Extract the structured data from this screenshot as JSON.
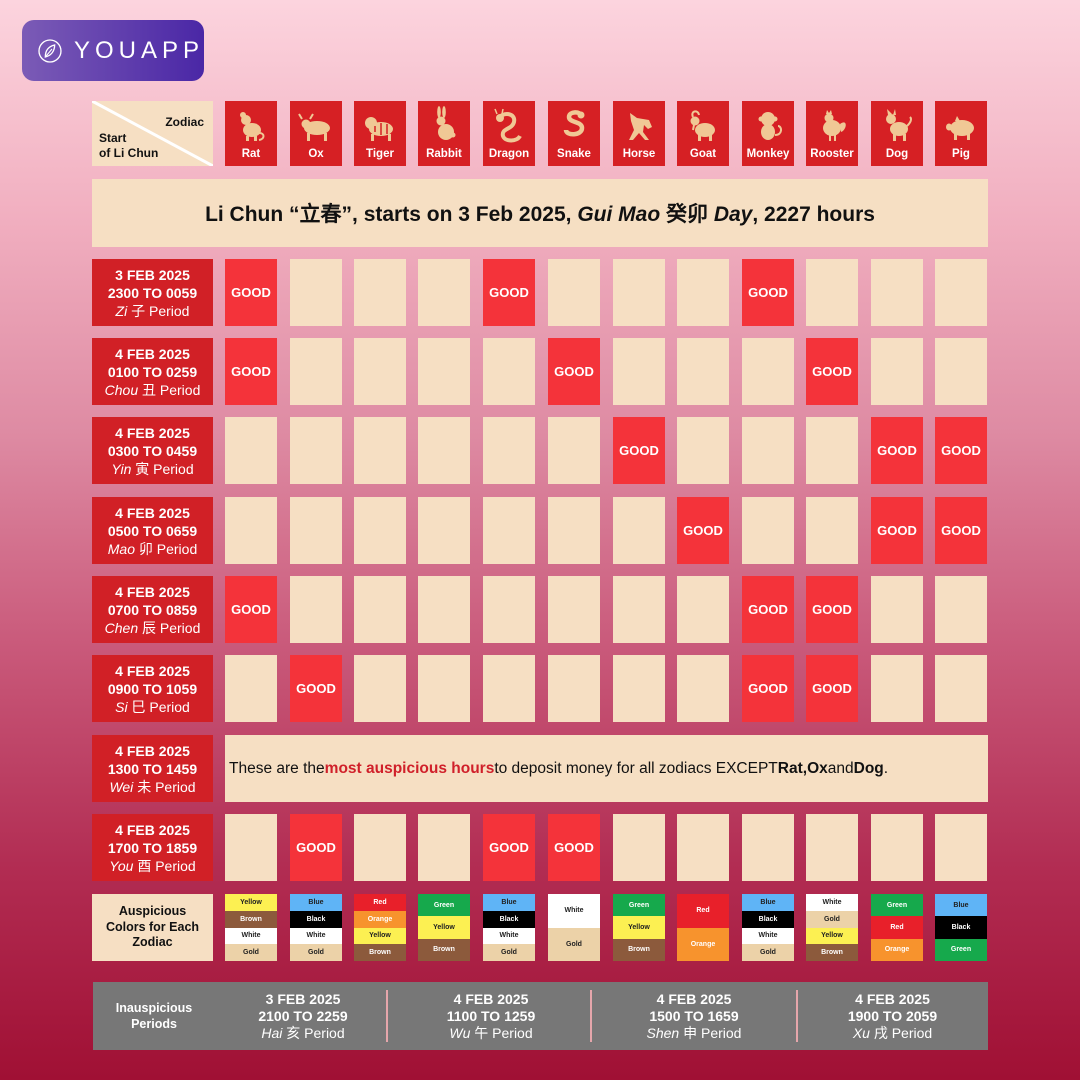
{
  "brand": {
    "name": "YOUAPP"
  },
  "corner": {
    "zodiac": "Zodiac",
    "start_line1": "Start",
    "start_line2": "of Li Chun"
  },
  "zodiacs": [
    "Rat",
    "Ox",
    "Tiger",
    "Rabbit",
    "Dragon",
    "Snake",
    "Horse",
    "Goat",
    "Monkey",
    "Rooster",
    "Dog",
    "Pig"
  ],
  "banner": {
    "part1": "Li Chun “立春”, starts on 3 Feb 2025, ",
    "italic1": "Gui Mao",
    "part2": " 癸卯 ",
    "italic2": "Day",
    "part3": ", 2227 hours"
  },
  "good_label": "GOOD",
  "periods": [
    {
      "date": "3 FEB 2025",
      "time": "2300 TO 0059",
      "name": "Zi",
      "chinese": "子",
      "suffix": "Period",
      "good": [
        0,
        4,
        8
      ]
    },
    {
      "date": "4 FEB 2025",
      "time": "0100 TO 0259",
      "name": "Chou",
      "chinese": "丑",
      "suffix": "Period",
      "good": [
        0,
        5,
        9
      ]
    },
    {
      "date": "4 FEB 2025",
      "time": "0300 TO 0459",
      "name": "Yin",
      "chinese": "寅",
      "suffix": "Period",
      "good": [
        6,
        10,
        11
      ]
    },
    {
      "date": "4 FEB 2025",
      "time": "0500 TO 0659",
      "name": "Mao",
      "chinese": "卯",
      "suffix": "Period",
      "good": [
        7,
        10,
        11
      ]
    },
    {
      "date": "4 FEB 2025",
      "time": "0700 TO 0859",
      "name": "Chen",
      "chinese": "辰",
      "suffix": "Period",
      "good": [
        0,
        8,
        9
      ]
    },
    {
      "date": "4 FEB 2025",
      "time": "0900 TO 1059",
      "name": "Si",
      "chinese": "巳",
      "suffix": "Period",
      "good": [
        1,
        8,
        9
      ]
    },
    {
      "date": "4 FEB 2025",
      "time": "1300 TO 1459",
      "name": "Wei",
      "chinese": "未",
      "suffix": "Period",
      "good": []
    },
    {
      "date": "4 FEB 2025",
      "time": "1700 TO 1859",
      "name": "You",
      "chinese": "酉",
      "suffix": "Period",
      "good": [
        1,
        4,
        5
      ]
    }
  ],
  "wei_message": {
    "pre": "These are the ",
    "highlight": "most auspicious hours",
    "mid": " to deposit money for all zodiacs EXCEPT ",
    "rat": "Rat",
    "comma": ", ",
    "ox": "Ox",
    "and": " and ",
    "dog": "Dog",
    "end": "."
  },
  "colors_label": "Auspicious Colors for Each Zodiac",
  "auspicious_colors": [
    [
      "Yellow",
      "Brown",
      "White",
      "Gold"
    ],
    [
      "Blue",
      "Black",
      "White",
      "Gold"
    ],
    [
      "Red",
      "Orange",
      "Yellow",
      "Brown"
    ],
    [
      "Green",
      "Yellow",
      "Brown"
    ],
    [
      "Blue",
      "Black",
      "White",
      "Gold"
    ],
    [
      "White",
      "Gold"
    ],
    [
      "Green",
      "Yellow",
      "Brown"
    ],
    [
      "Red",
      "Orange"
    ],
    [
      "Blue",
      "Black",
      "White",
      "Gold"
    ],
    [
      "White",
      "Gold",
      "Yellow",
      "Brown"
    ],
    [
      "Green",
      "Red",
      "Orange"
    ],
    [
      "Blue",
      "Black",
      "Green"
    ]
  ],
  "swatch_colors": {
    "Yellow": "#fcf052",
    "Brown": "#8c5a3c",
    "White": "#ffffff",
    "Gold": "#ecd2a8",
    "Blue": "#5fb4f6",
    "Black": "#000000",
    "Red": "#e8202a",
    "Orange": "#f7932d",
    "Green": "#16a94c"
  },
  "inauspicious": {
    "label": "Inauspicious Periods",
    "periods": [
      {
        "date": "3 FEB 2025",
        "time": "2100 TO 2259",
        "name": "Hai",
        "chinese": "亥",
        "suffix": "Period"
      },
      {
        "date": "4 FEB 2025",
        "time": "1100 TO 1259",
        "name": "Wu",
        "chinese": "午",
        "suffix": "Period"
      },
      {
        "date": "4 FEB 2025",
        "time": "1500 TO 1659",
        "name": "Shen",
        "chinese": "申",
        "suffix": "Period"
      },
      {
        "date": "4 FEB 2025",
        "time": "1900 TO 2059",
        "name": "Xu",
        "chinese": "戌",
        "suffix": "Period"
      }
    ]
  },
  "theme": {
    "red": "#d12026",
    "good": "#f4333a",
    "cream": "#f6dfc3",
    "gold_icon": "#f0c895",
    "gray": "#777777"
  }
}
